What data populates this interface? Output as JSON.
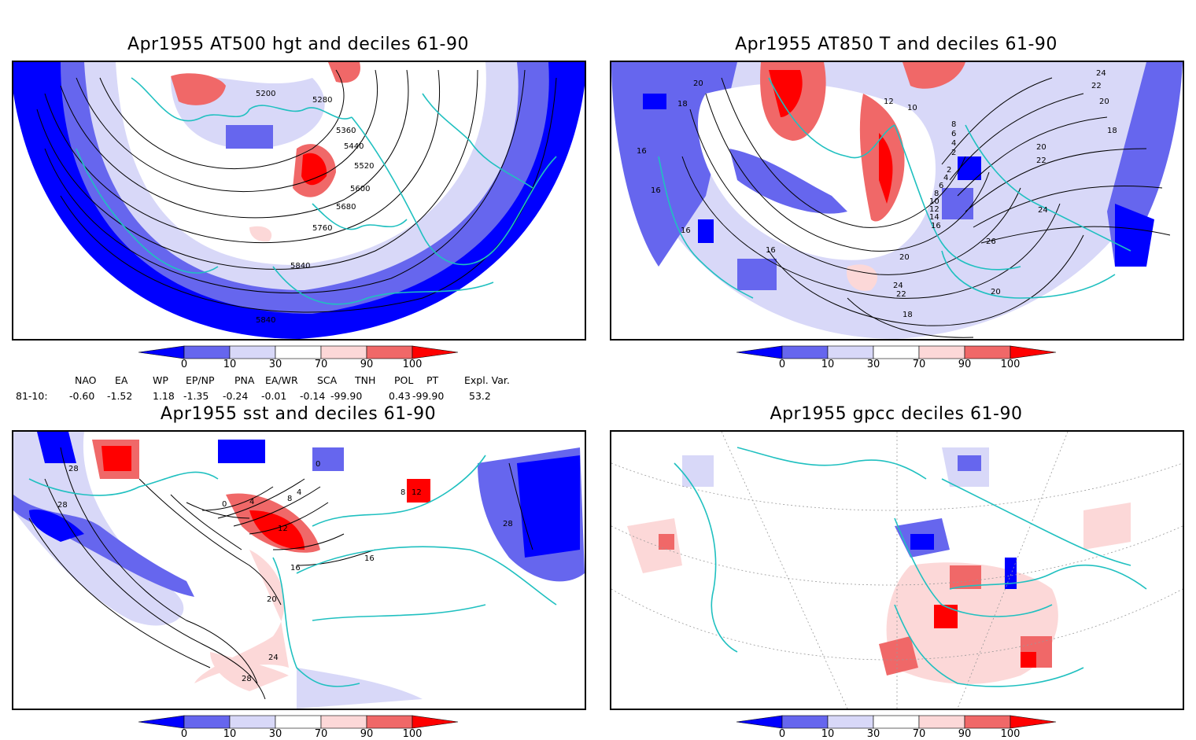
{
  "panels": {
    "tl": {
      "title": "Apr1955 AT500 hgt and deciles 61-90",
      "contour_labels": [
        "5200",
        "5280",
        "5360",
        "5440",
        "5520",
        "5600",
        "5680",
        "5760",
        "5840",
        "5840"
      ]
    },
    "tr": {
      "title": "Apr1955 AT850 T and deciles 61-90",
      "contour_labels": [
        "20",
        "18",
        "16",
        "16",
        "16",
        "16",
        "20",
        "22",
        "24",
        "26",
        "24",
        "22",
        "20",
        "18",
        "20",
        "22",
        "24",
        "20",
        "18",
        "16",
        "14",
        "12",
        "10",
        "8",
        "6",
        "4",
        "2",
        "12",
        "10",
        "8",
        "6",
        "4",
        "2"
      ]
    },
    "bl": {
      "title": "Apr1955 sst and deciles 61-90",
      "contour_labels": [
        "28",
        "28",
        "0",
        "4",
        "8",
        "12",
        "16",
        "20",
        "24",
        "28",
        "16",
        "28",
        "4",
        "0",
        "8",
        "12"
      ]
    },
    "br": {
      "title": "Apr1955 gpcc deciles 61-90"
    }
  },
  "colorbar": {
    "labels": [
      "0",
      "10",
      "30",
      "70",
      "90",
      "100"
    ],
    "colors": [
      "#0000ff",
      "#6666ee",
      "#d8d8f8",
      "#ffffff",
      "#fcd8d8",
      "#f06868",
      "#ff0000"
    ]
  },
  "indices": {
    "headers": [
      "NAO",
      "EA",
      "WP",
      "EP/NP",
      "PNA",
      "EA/WR",
      "SCA",
      "TNH",
      "POL",
      "PT",
      "Expl. Var."
    ],
    "row_label": "81-10:",
    "values": [
      "-0.60",
      "-1.52",
      "1.18",
      "-1.35",
      "-0.24",
      "-0.01",
      "-0.14",
      "-99.90",
      "0.43",
      "-99.90",
      "53.2"
    ]
  }
}
